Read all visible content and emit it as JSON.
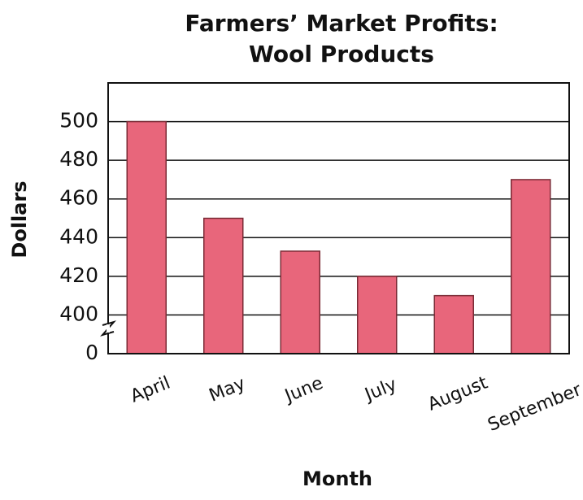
{
  "chart_data": {
    "type": "bar",
    "title": [
      "Farmers’ Market Profits:",
      "Wool Products"
    ],
    "x_label": "Month",
    "y_label": "Dollars",
    "categories": [
      "April",
      "May",
      "June",
      "July",
      "August",
      "September"
    ],
    "values": [
      500,
      450,
      433,
      420,
      410,
      470
    ],
    "color": "#e8667b",
    "ylim": [
      0,
      520
    ],
    "yticks": [
      0,
      400,
      420,
      440,
      460,
      480,
      500
    ],
    "axis_break": true,
    "grid": true
  }
}
